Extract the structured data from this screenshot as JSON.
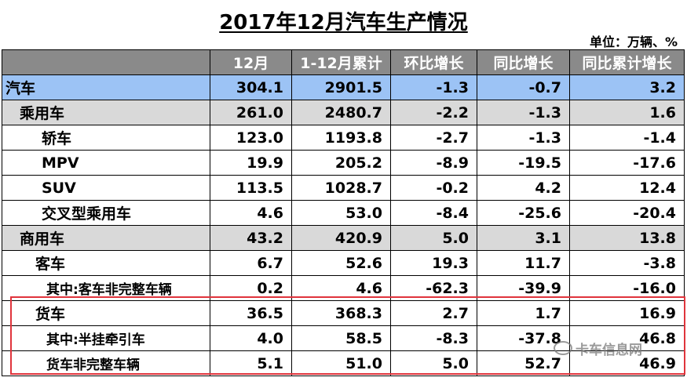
{
  "title": "2017年12月汽车生产情况",
  "unit": "单位：万辆、%",
  "headers": [
    "",
    "12月",
    "1-12月累计",
    "环比增长",
    "同比增长",
    "同比累计增长"
  ],
  "rows": [
    {
      "label": "汽车",
      "values": [
        "304.1",
        "2901.5",
        "-1.3",
        "-0.7",
        "3.2"
      ]
    },
    {
      "label": "乘用车",
      "values": [
        "261.0",
        "2480.7",
        "-2.2",
        "-1.3",
        "1.6"
      ]
    },
    {
      "label": "轿车",
      "values": [
        "123.0",
        "1193.8",
        "-2.7",
        "-1.3",
        "-1.4"
      ]
    },
    {
      "label": "MPV",
      "values": [
        "19.9",
        "205.2",
        "-8.9",
        "-19.5",
        "-17.6"
      ]
    },
    {
      "label": "SUV",
      "values": [
        "113.5",
        "1028.7",
        "-0.2",
        "4.2",
        "12.4"
      ]
    },
    {
      "label": "交叉型乘用车",
      "values": [
        "4.6",
        "53.0",
        "-8.4",
        "-25.6",
        "-20.4"
      ]
    },
    {
      "label": "商用车",
      "values": [
        "43.2",
        "420.9",
        "5.0",
        "3.1",
        "13.8"
      ]
    },
    {
      "label": "客车",
      "values": [
        "6.7",
        "52.6",
        "19.3",
        "11.7",
        "-3.8"
      ]
    },
    {
      "label": "其中:客车非完整车辆",
      "values": [
        "0.2",
        "4.6",
        "-62.3",
        "-39.9",
        "-16.0"
      ]
    },
    {
      "label": "货车",
      "values": [
        "36.5",
        "368.3",
        "2.7",
        "1.7",
        "16.9"
      ]
    },
    {
      "label": "其中:半挂牵引车",
      "values": [
        "4.0",
        "58.5",
        "-8.3",
        "-37.8",
        "46.8"
      ]
    },
    {
      "label": "货车非完整车辆",
      "values": [
        "5.1",
        "51.0",
        "5.0",
        "52.7",
        "46.9"
      ]
    }
  ],
  "watermark": "卡车信息网",
  "colors": {
    "header_bg": "#8a8a8a",
    "total_row_bg": "#9cc3f5",
    "category_row_bg": "#d9d9d9",
    "highlight_border": "#e0343c"
  }
}
